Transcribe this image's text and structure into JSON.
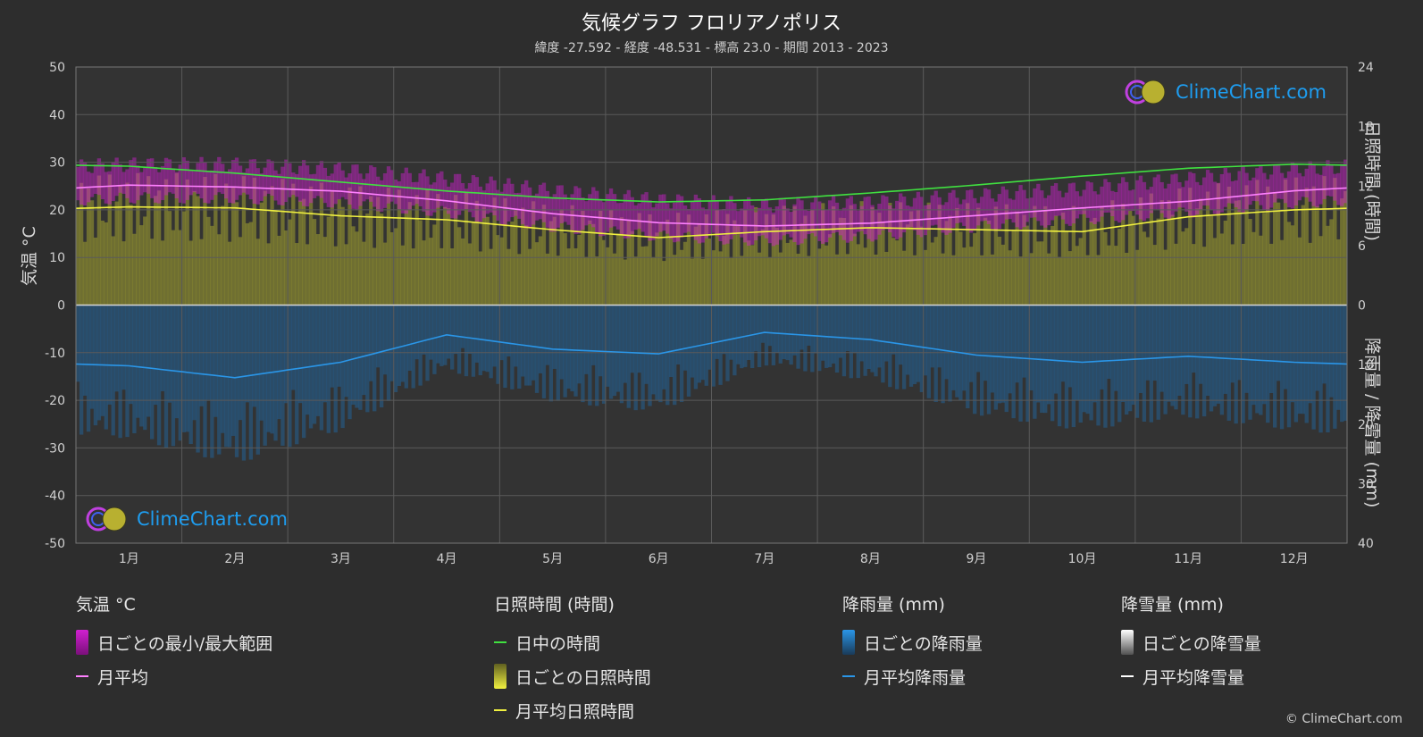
{
  "title": "気候グラフ フロリアノポリス",
  "subtitle": "緯度 -27.592 - 経度 -48.531 - 標高 23.0 - 期間 2013 - 2023",
  "axis": {
    "left_label": "気温 °C",
    "right_top_label": "日照時間 (時間)",
    "right_bottom_label": "降雨量 / 降雪量 (mm)"
  },
  "logo_text": "ClimeChart.com",
  "copyright": "© ClimeChart.com",
  "legend": {
    "temp": {
      "heading": "気温 °C",
      "range": "日ごとの最小/最大範囲",
      "avg": "月平均"
    },
    "sun": {
      "heading": "日照時間 (時間)",
      "daylight": "日中の時間",
      "daily": "日ごとの日照時間",
      "avg": "月平均日照時間"
    },
    "rain": {
      "heading": "降雨量 (mm)",
      "daily": "日ごとの降雨量",
      "avg": "月平均降雨量"
    },
    "snow": {
      "heading": "降雪量 (mm)",
      "daily": "日ごとの降雪量",
      "avg": "月平均降雪量"
    }
  },
  "colors": {
    "background": "#2d2d2d",
    "temp_range": "#d020d0",
    "temp_avg": "#ff80ff",
    "daylight": "#40e040",
    "sunshine_fill": "#a0a030",
    "sunshine_avg": "#f0f040",
    "rain_fill": "#1e6aa8",
    "rain_avg": "#2a96e8",
    "snow": "#ffffff",
    "logo": "#1e9df0"
  },
  "chart_data": {
    "type": "line",
    "categories": [
      "1月",
      "2月",
      "3月",
      "4月",
      "5月",
      "6月",
      "7月",
      "8月",
      "9月",
      "10月",
      "11月",
      "12月"
    ],
    "y_left": {
      "ticks": [
        50,
        40,
        30,
        20,
        10,
        0,
        -10,
        -20,
        -30,
        -40,
        -50
      ],
      "ylim": [
        -50,
        50
      ]
    },
    "y_right_sun": {
      "ticks": [
        24,
        18,
        12,
        6,
        0
      ],
      "ylim": [
        0,
        24
      ]
    },
    "y_right_rain": {
      "ticks": [
        0,
        10,
        20,
        30,
        40
      ],
      "ylim": [
        0,
        40
      ]
    },
    "grid": true,
    "series": [
      {
        "name": "日中の時間",
        "unit": "hours",
        "values": [
          14.0,
          13.3,
          12.4,
          11.5,
          10.8,
          10.4,
          10.6,
          11.3,
          12.1,
          13.0,
          13.8,
          14.2
        ]
      },
      {
        "name": "月平均",
        "unit": "°C",
        "values": [
          25.2,
          24.8,
          23.9,
          21.9,
          19.2,
          17.3,
          16.6,
          17.2,
          18.8,
          20.4,
          21.8,
          24.0
        ]
      },
      {
        "name": "月平均日照時間",
        "unit": "hours",
        "values": [
          9.9,
          9.8,
          9.0,
          8.6,
          7.6,
          6.8,
          7.4,
          7.8,
          7.6,
          7.4,
          8.9,
          9.6
        ]
      },
      {
        "name": "月平均降雨量",
        "unit": "mm",
        "values": [
          10.2,
          12.2,
          9.6,
          5.0,
          7.4,
          8.2,
          4.6,
          5.8,
          8.4,
          9.6,
          8.6,
          9.6
        ]
      },
      {
        "name": "日ごとの最小/最大範囲",
        "unit": "°C",
        "min": [
          22.5,
          22.5,
          21.5,
          19.5,
          16.5,
          14.5,
          13.5,
          14.5,
          16.5,
          18.0,
          19.5,
          21.5
        ],
        "max": [
          29.5,
          29.5,
          28.5,
          26.5,
          24.0,
          22.0,
          21.0,
          21.5,
          23.0,
          24.5,
          26.5,
          28.5
        ]
      }
    ]
  }
}
